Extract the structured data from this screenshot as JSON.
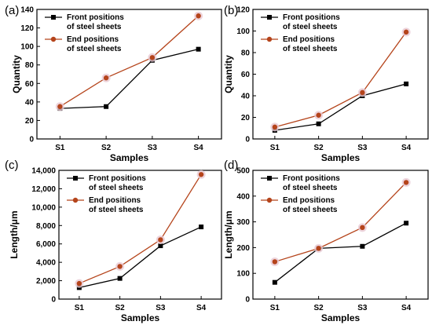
{
  "chart_data": [
    {
      "panel": "(a)",
      "type": "line",
      "categories": [
        "S1",
        "S2",
        "S3",
        "S4"
      ],
      "xlabel": "Samples",
      "ylabel": "Quantity",
      "ylim": [
        0,
        140
      ],
      "yticks": [
        0,
        20,
        40,
        60,
        80,
        100,
        120,
        140
      ],
      "ytick_labels": [
        "0",
        "20",
        "40",
        "60",
        "80",
        "100",
        "120",
        "140"
      ],
      "legend_position": "top-left",
      "series": [
        {
          "name": "Front positions\nof steel sheets",
          "values": [
            33,
            35,
            85,
            97
          ],
          "color": "#000000",
          "marker": "square"
        },
        {
          "name": "End positions\nof steel sheets",
          "values": [
            35,
            66,
            88,
            133
          ],
          "color": "#b5441b",
          "marker": "circle"
        }
      ]
    },
    {
      "panel": "(b)",
      "type": "line",
      "categories": [
        "S1",
        "S2",
        "S3",
        "S4"
      ],
      "xlabel": "Samples",
      "ylabel": "Quantity",
      "ylim": [
        0,
        120
      ],
      "yticks": [
        0,
        20,
        40,
        60,
        80,
        100,
        120
      ],
      "ytick_labels": [
        "0",
        "20",
        "40",
        "60",
        "80",
        "100",
        "120"
      ],
      "legend_position": "top-left",
      "series": [
        {
          "name": "Front positions\nof steel sheets",
          "values": [
            8,
            14,
            40,
            51
          ],
          "color": "#000000",
          "marker": "square"
        },
        {
          "name": "End positions\nof steel sheets",
          "values": [
            11,
            22,
            43,
            99
          ],
          "color": "#b5441b",
          "marker": "circle"
        }
      ]
    },
    {
      "panel": "(c)",
      "type": "line",
      "categories": [
        "S1",
        "S2",
        "S3",
        "S4"
      ],
      "xlabel": "Samples",
      "ylabel": "Length/μm",
      "ylim": [
        0,
        14000
      ],
      "yticks": [
        0,
        2000,
        4000,
        6000,
        8000,
        10000,
        12000,
        14000
      ],
      "ytick_labels": [
        "0",
        "2,000",
        "4,000",
        "6,000",
        "8,000",
        "10,000",
        "12,000",
        "14,000"
      ],
      "legend_position": "top-left",
      "series": [
        {
          "name": "Front positions\nof steel sheets",
          "values": [
            1250,
            2250,
            5800,
            7850
          ],
          "color": "#000000",
          "marker": "square"
        },
        {
          "name": "End positions\nof steel sheets",
          "values": [
            1700,
            3550,
            6450,
            13550
          ],
          "color": "#b5441b",
          "marker": "circle"
        }
      ]
    },
    {
      "panel": "(d)",
      "type": "line",
      "categories": [
        "S1",
        "S2",
        "S3",
        "S4"
      ],
      "xlabel": "Samples",
      "ylabel": "Length/μm",
      "ylim": [
        0,
        500
      ],
      "yticks": [
        0,
        100,
        200,
        300,
        400,
        500
      ],
      "ytick_labels": [
        "0",
        "100",
        "200",
        "300",
        "400",
        "500"
      ],
      "legend_position": "top-left",
      "series": [
        {
          "name": "Front positions\nof steel sheets",
          "values": [
            65,
            197,
            205,
            295
          ],
          "color": "#000000",
          "marker": "square"
        },
        {
          "name": "End positions\nof steel sheets",
          "values": [
            145,
            197,
            278,
            453
          ],
          "color": "#b5441b",
          "marker": "circle"
        }
      ]
    }
  ]
}
